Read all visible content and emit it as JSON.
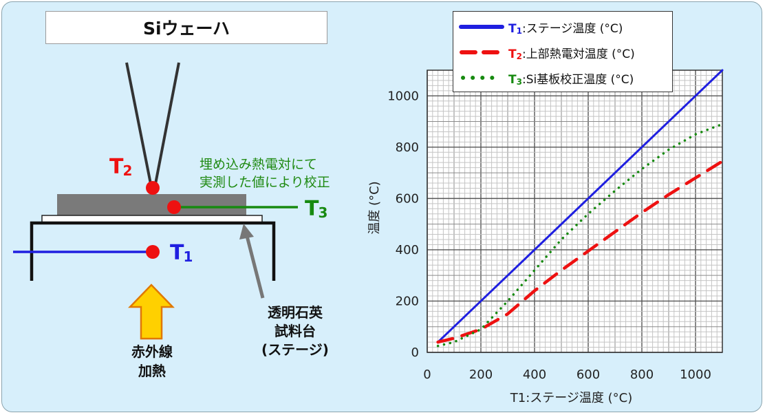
{
  "colors": {
    "panel_bg": "#d7effb",
    "t1": "#1f1fe0",
    "t2": "#ee1111",
    "t3": "#178a10",
    "arrow_fill": "#ffd000",
    "arrow_stroke": "#e07800",
    "wafer": "#7a7a7a"
  },
  "diagram": {
    "title": "Siウェーハ",
    "t2_label": {
      "main": "T",
      "sub": "2"
    },
    "t3_label": {
      "main": "T",
      "sub": "3"
    },
    "t1_label": {
      "main": "T",
      "sub": "1"
    },
    "note": "埋め込み熱電対にて\n実測した値により校正",
    "stage_label": "透明石英\n試料台\n(ステージ)",
    "heat_label": "赤外線\n加熱"
  },
  "legend": [
    {
      "t_main": "T",
      "t_sub": "1",
      "text": ":ステージ温度 (°C)",
      "style": "solid"
    },
    {
      "t_main": "T",
      "t_sub": "2",
      "text": ":上部熱電対温度 (°C)",
      "style": "dashed"
    },
    {
      "t_main": "T",
      "t_sub": "3",
      "text": ":Si基板校正温度 (°C)",
      "style": "dotted"
    }
  ],
  "chart_data": {
    "type": "line",
    "xlabel": "T1:ステージ温度 (°C)",
    "ylabel": "温度 (°C)",
    "xlim": [
      0,
      1100
    ],
    "ylim": [
      0,
      1100
    ],
    "xticks": [
      0,
      200,
      400,
      600,
      800,
      1000
    ],
    "yticks": [
      0,
      200,
      400,
      600,
      800,
      1000
    ],
    "grid": "minor 50, major 200",
    "legend_position": "top-right",
    "series": [
      {
        "name": "T1",
        "color": "#1f1fe0",
        "style": "solid",
        "x": [
          40,
          1100
        ],
        "y": [
          40,
          1100
        ]
      },
      {
        "name": "T2",
        "color": "#ee1111",
        "style": "dashed",
        "x": [
          40,
          100,
          200,
          300,
          400,
          500,
          600,
          700,
          800,
          900,
          1000,
          1100
        ],
        "y": [
          40,
          55,
          90,
          150,
          240,
          320,
          395,
          470,
          545,
          615,
          680,
          745
        ]
      },
      {
        "name": "T3",
        "color": "#178a10",
        "style": "dotted",
        "x": [
          40,
          100,
          200,
          300,
          400,
          500,
          600,
          700,
          800,
          900,
          1000,
          1100
        ],
        "y": [
          25,
          40,
          90,
          200,
          320,
          440,
          540,
          630,
          715,
          790,
          850,
          890
        ]
      }
    ]
  }
}
